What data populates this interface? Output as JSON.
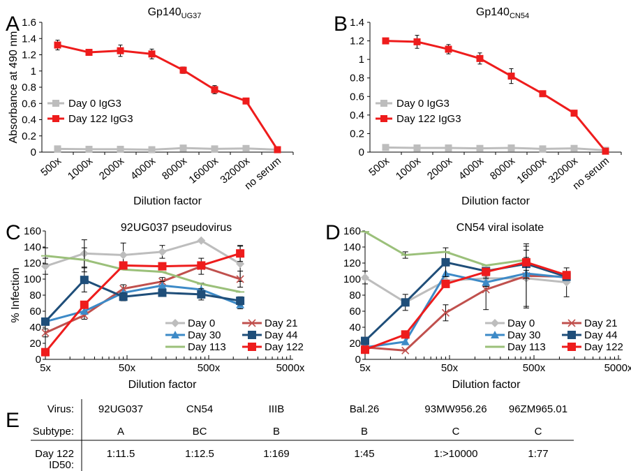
{
  "colors": {
    "Day 0": "#bdbdbd",
    "Day 122": "#ee1c1c",
    "Day 21": "#c0504d",
    "Day 30": "#3d8ac7",
    "Day 44": "#1f4e79",
    "Day 113": "#9bc07a"
  },
  "chart_data": [
    {
      "panel": "A",
      "type": "line",
      "title_main": "Gp140",
      "title_sub": "UG37",
      "ylabel": "Absorbance at 490 nm",
      "xlabel": "Dilution factor",
      "categories": [
        "500x",
        "1000x",
        "2000x",
        "4000x",
        "8000x",
        "16000x",
        "32000x",
        "no serum"
      ],
      "ylim": [
        0,
        1.6
      ],
      "yticks": [
        "0",
        "0.2",
        "0.4",
        "0.6",
        "0.8",
        "1",
        "1.2",
        "1.4",
        "1.6"
      ],
      "legend_position": "middle-left",
      "series": [
        {
          "name": "Day 0 IgG3",
          "values": [
            0.04,
            0.035,
            0.035,
            0.03,
            0.05,
            0.04,
            0.045,
            0.03
          ],
          "errors": [
            0.01,
            0.01,
            0.01,
            0.01,
            0.01,
            0.01,
            0.01,
            0.005
          ]
        },
        {
          "name": "Day 122 IgG3",
          "values": [
            1.32,
            1.23,
            1.25,
            1.21,
            1.01,
            0.77,
            0.63,
            0.03
          ],
          "errors": [
            0.06,
            0.02,
            0.07,
            0.06,
            0.04,
            0.05,
            0.02,
            0.01
          ]
        }
      ]
    },
    {
      "panel": "B",
      "type": "line",
      "title_main": "Gp140",
      "title_sub": "CN54",
      "ylabel": "",
      "xlabel": "Dilution factor",
      "categories": [
        "500x",
        "1000x",
        "2000x",
        "4000x",
        "8000x",
        "16000x",
        "32000x",
        "no serum"
      ],
      "ylim": [
        0,
        1.4
      ],
      "yticks": [
        "0",
        "0.2",
        "0.4",
        "0.6",
        "0.8",
        "1",
        "1.2",
        "1.4"
      ],
      "legend_position": "middle-left",
      "series": [
        {
          "name": "Day 0 IgG3",
          "values": [
            0.05,
            0.045,
            0.045,
            0.04,
            0.045,
            0.035,
            0.04,
            0.02
          ],
          "errors": [
            0.01,
            0.01,
            0.01,
            0.01,
            0.01,
            0.01,
            0.01,
            0.005
          ]
        },
        {
          "name": "Day 122 IgG3",
          "values": [
            1.2,
            1.19,
            1.11,
            1.01,
            0.82,
            0.63,
            0.42,
            0.01
          ],
          "errors": [
            0.02,
            0.07,
            0.05,
            0.06,
            0.08,
            0.02,
            0.02,
            0.005
          ]
        }
      ]
    },
    {
      "panel": "C",
      "type": "line",
      "title": "92UG037 pseudovirus",
      "ylabel": "% Infection",
      "xlabel": "Dilution factor",
      "xscale": "log",
      "xlim": [
        5,
        5000
      ],
      "xticks": [
        "5x",
        "50x",
        "500x",
        "5000x"
      ],
      "ylim": [
        0,
        160
      ],
      "yticks": [
        "0",
        "20",
        "40",
        "60",
        "80",
        "100",
        "120",
        "140",
        "160"
      ],
      "legend_position": "bottom-right",
      "legend_entries": [
        "Day 0",
        "Day 21",
        "Day 30",
        "Day 44",
        "Day 113",
        "Day 122"
      ],
      "x": [
        5,
        15,
        45,
        135,
        405,
        1215
      ],
      "series": [
        {
          "name": "Day 0",
          "marker": "diamond",
          "values": [
            116,
            132,
            130,
            134,
            148,
            119
          ],
          "errors": [
            10,
            17,
            15,
            8,
            0,
            22
          ]
        },
        {
          "name": "Day 21",
          "marker": "x",
          "values": [
            33,
            55,
            88,
            97,
            116,
            100
          ],
          "errors": [
            5,
            5,
            5,
            5,
            10,
            10
          ]
        },
        {
          "name": "Day 30",
          "marker": "triangle",
          "values": [
            47,
            60,
            83,
            92,
            87,
            68
          ],
          "errors": [
            0,
            0,
            0,
            5,
            8,
            5
          ]
        },
        {
          "name": "Day 44",
          "marker": "square",
          "values": [
            47,
            99,
            78,
            83,
            81,
            73
          ],
          "errors": [
            0,
            15,
            5,
            4,
            7,
            5
          ]
        },
        {
          "name": "Day 113",
          "marker": "line",
          "values": [
            129,
            124,
            112,
            109,
            94,
            84
          ],
          "errors": [
            10,
            15,
            0,
            0,
            0,
            0
          ]
        },
        {
          "name": "Day 122",
          "marker": "square",
          "values": [
            9,
            68,
            117,
            116,
            117,
            132
          ],
          "errors": [
            0,
            0,
            0,
            0,
            0,
            10
          ]
        }
      ]
    },
    {
      "panel": "D",
      "type": "line",
      "title": "CN54 viral isolate",
      "ylabel": "",
      "xlabel": "Dilution factor",
      "xscale": "log",
      "xlim": [
        5,
        5000
      ],
      "xticks": [
        "5x",
        "50x",
        "500x",
        "5000x"
      ],
      "ylim": [
        0,
        160
      ],
      "yticks": [
        "0",
        "20",
        "40",
        "60",
        "80",
        "100",
        "120",
        "140",
        "160"
      ],
      "legend_position": "bottom-right",
      "legend_entries": [
        "Day 0",
        "Day 21",
        "Day 30",
        "Day 44",
        "Day 113",
        "Day 122"
      ],
      "x": [
        5,
        15,
        45,
        135,
        405,
        1215
      ],
      "series": [
        {
          "name": "Day 0",
          "marker": "diamond",
          "values": [
            102,
            71,
            98,
            101,
            101,
            96
          ],
          "errors": [
            8,
            0,
            5,
            10,
            35,
            18
          ]
        },
        {
          "name": "Day 21",
          "marker": "x",
          "values": [
            15,
            11,
            58,
            87,
            104,
            103
          ],
          "errors": [
            0,
            0,
            10,
            25,
            40,
            0
          ]
        },
        {
          "name": "Day 30",
          "marker": "triangle",
          "values": [
            15,
            22,
            107,
            96,
            107,
            102
          ],
          "errors": [
            0,
            0,
            0,
            5,
            0,
            0
          ]
        },
        {
          "name": "Day 44",
          "marker": "square",
          "values": [
            23,
            71,
            121,
            110,
            119,
            103
          ],
          "errors": [
            0,
            10,
            18,
            0,
            8,
            0
          ]
        },
        {
          "name": "Day 113",
          "marker": "line",
          "values": [
            159,
            130,
            134,
            117,
            124,
            null
          ],
          "errors": [
            0,
            4,
            0,
            0,
            0,
            0
          ]
        },
        {
          "name": "Day 122",
          "marker": "square",
          "values": [
            12,
            31,
            94,
            109,
            121,
            105
          ],
          "errors": [
            0,
            0,
            0,
            0,
            20,
            0
          ]
        }
      ]
    }
  ],
  "panel_labels": [
    "A",
    "B",
    "C",
    "D",
    "E"
  ],
  "table": {
    "row_labels": [
      "Virus:",
      "Subtype:",
      "Day 122"
    ],
    "row_label_extra": "ID50:",
    "columns": [
      {
        "virus": "92UG037",
        "subtype": "A",
        "id50": "1:11.5"
      },
      {
        "virus": "CN54",
        "subtype": "BC",
        "id50": "1:12.5"
      },
      {
        "virus": "IIIB",
        "subtype": "B",
        "id50": "1:169"
      },
      {
        "virus": "Bal.26",
        "subtype": "B",
        "id50": "1:45"
      },
      {
        "virus": "93MW956.26",
        "subtype": "C",
        "id50": "1:>10000"
      },
      {
        "virus": "96ZM965.01",
        "subtype": "C",
        "id50": "1:77"
      }
    ]
  }
}
